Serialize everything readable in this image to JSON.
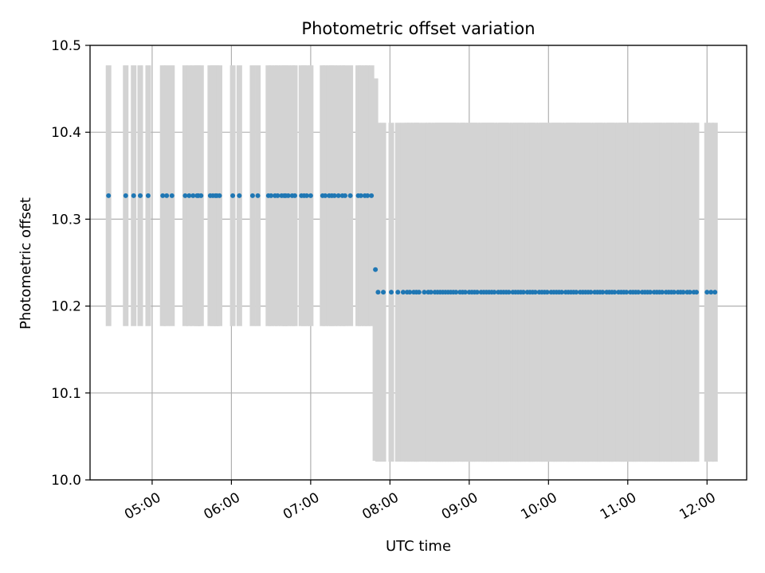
{
  "chart_data": {
    "type": "scatter",
    "title": "Photometric offset variation",
    "xlabel": "UTC time",
    "ylabel": "Photometric offset",
    "xlim": [
      "04:13",
      "12:30"
    ],
    "ylim": [
      10.0,
      10.5
    ],
    "x_ticks": [
      "05:00",
      "06:00",
      "07:00",
      "08:00",
      "09:00",
      "10:00",
      "11:00",
      "12:00"
    ],
    "y_ticks": [
      "10.0",
      "10.1",
      "10.2",
      "10.3",
      "10.4",
      "10.5"
    ],
    "grid": true,
    "colors": {
      "point": "#1f77b4",
      "error_bar": "#d3d3d3",
      "grid": "#b0b0b0"
    },
    "segments": [
      {
        "name": "",
        "y": 10.327,
        "error": 0.15,
        "times": [
          "04:27",
          "04:40",
          "04:46",
          "04:51",
          "04:57",
          "05:08",
          "05:11",
          "05:15",
          "05:25",
          "05:28",
          "05:31",
          "05:34",
          "05:35",
          "05:37",
          "05:44",
          "05:46",
          "05:48",
          "05:49",
          "05:51",
          "06:01",
          "06:06",
          "06:16",
          "06:20",
          "06:28",
          "06:30",
          "06:33",
          "06:35",
          "06:38",
          "06:40",
          "06:41",
          "06:43",
          "06:46",
          "06:48",
          "06:53",
          "06:55",
          "06:57",
          "07:00",
          "07:09",
          "07:11",
          "07:14",
          "07:16",
          "07:18",
          "07:21",
          "07:24",
          "07:26",
          "07:30",
          "07:36",
          "07:38",
          "07:41",
          "07:43",
          "07:46"
        ]
      },
      {
        "name": "",
        "y": 10.242,
        "error": 0.22,
        "times": [
          "07:49"
        ]
      },
      {
        "name": "",
        "y": 10.216,
        "error": 0.195,
        "times": [
          "07:51",
          "07:55",
          "08:01",
          "08:06",
          "08:10",
          "08:13",
          "08:15",
          "08:18",
          "08:20",
          "08:22",
          "08:26",
          "08:29",
          "08:31",
          "08:34",
          "08:36",
          "08:38",
          "08:40",
          "08:42",
          "08:44",
          "08:46",
          "08:48",
          "08:50",
          "08:53",
          "08:55",
          "08:57",
          "09:00",
          "09:02",
          "09:04",
          "09:06",
          "09:09",
          "09:11",
          "09:13",
          "09:15",
          "09:17",
          "09:19",
          "09:22",
          "09:24",
          "09:26",
          "09:28",
          "09:30",
          "09:33",
          "09:35",
          "09:37",
          "09:39",
          "09:41",
          "09:44",
          "09:46",
          "09:48",
          "09:50",
          "09:53",
          "09:55",
          "09:57",
          "09:59",
          "10:02",
          "10:04",
          "10:06",
          "10:08",
          "10:10",
          "10:13",
          "10:15",
          "10:17",
          "10:19",
          "10:21",
          "10:24",
          "10:26",
          "10:28",
          "10:30",
          "10:32",
          "10:35",
          "10:37",
          "10:39",
          "10:41",
          "10:44",
          "10:46",
          "10:48",
          "10:50",
          "10:53",
          "10:55",
          "10:57",
          "10:59",
          "11:02",
          "11:04",
          "11:06",
          "11:08",
          "11:11",
          "11:13",
          "11:15",
          "11:17",
          "11:20",
          "11:22",
          "11:24",
          "11:26",
          "11:29",
          "11:31",
          "11:33",
          "11:35",
          "11:38",
          "11:40",
          "11:42",
          "11:45",
          "11:47",
          "11:50",
          "11:52",
          "12:00",
          "12:03",
          "12:06"
        ]
      }
    ]
  }
}
